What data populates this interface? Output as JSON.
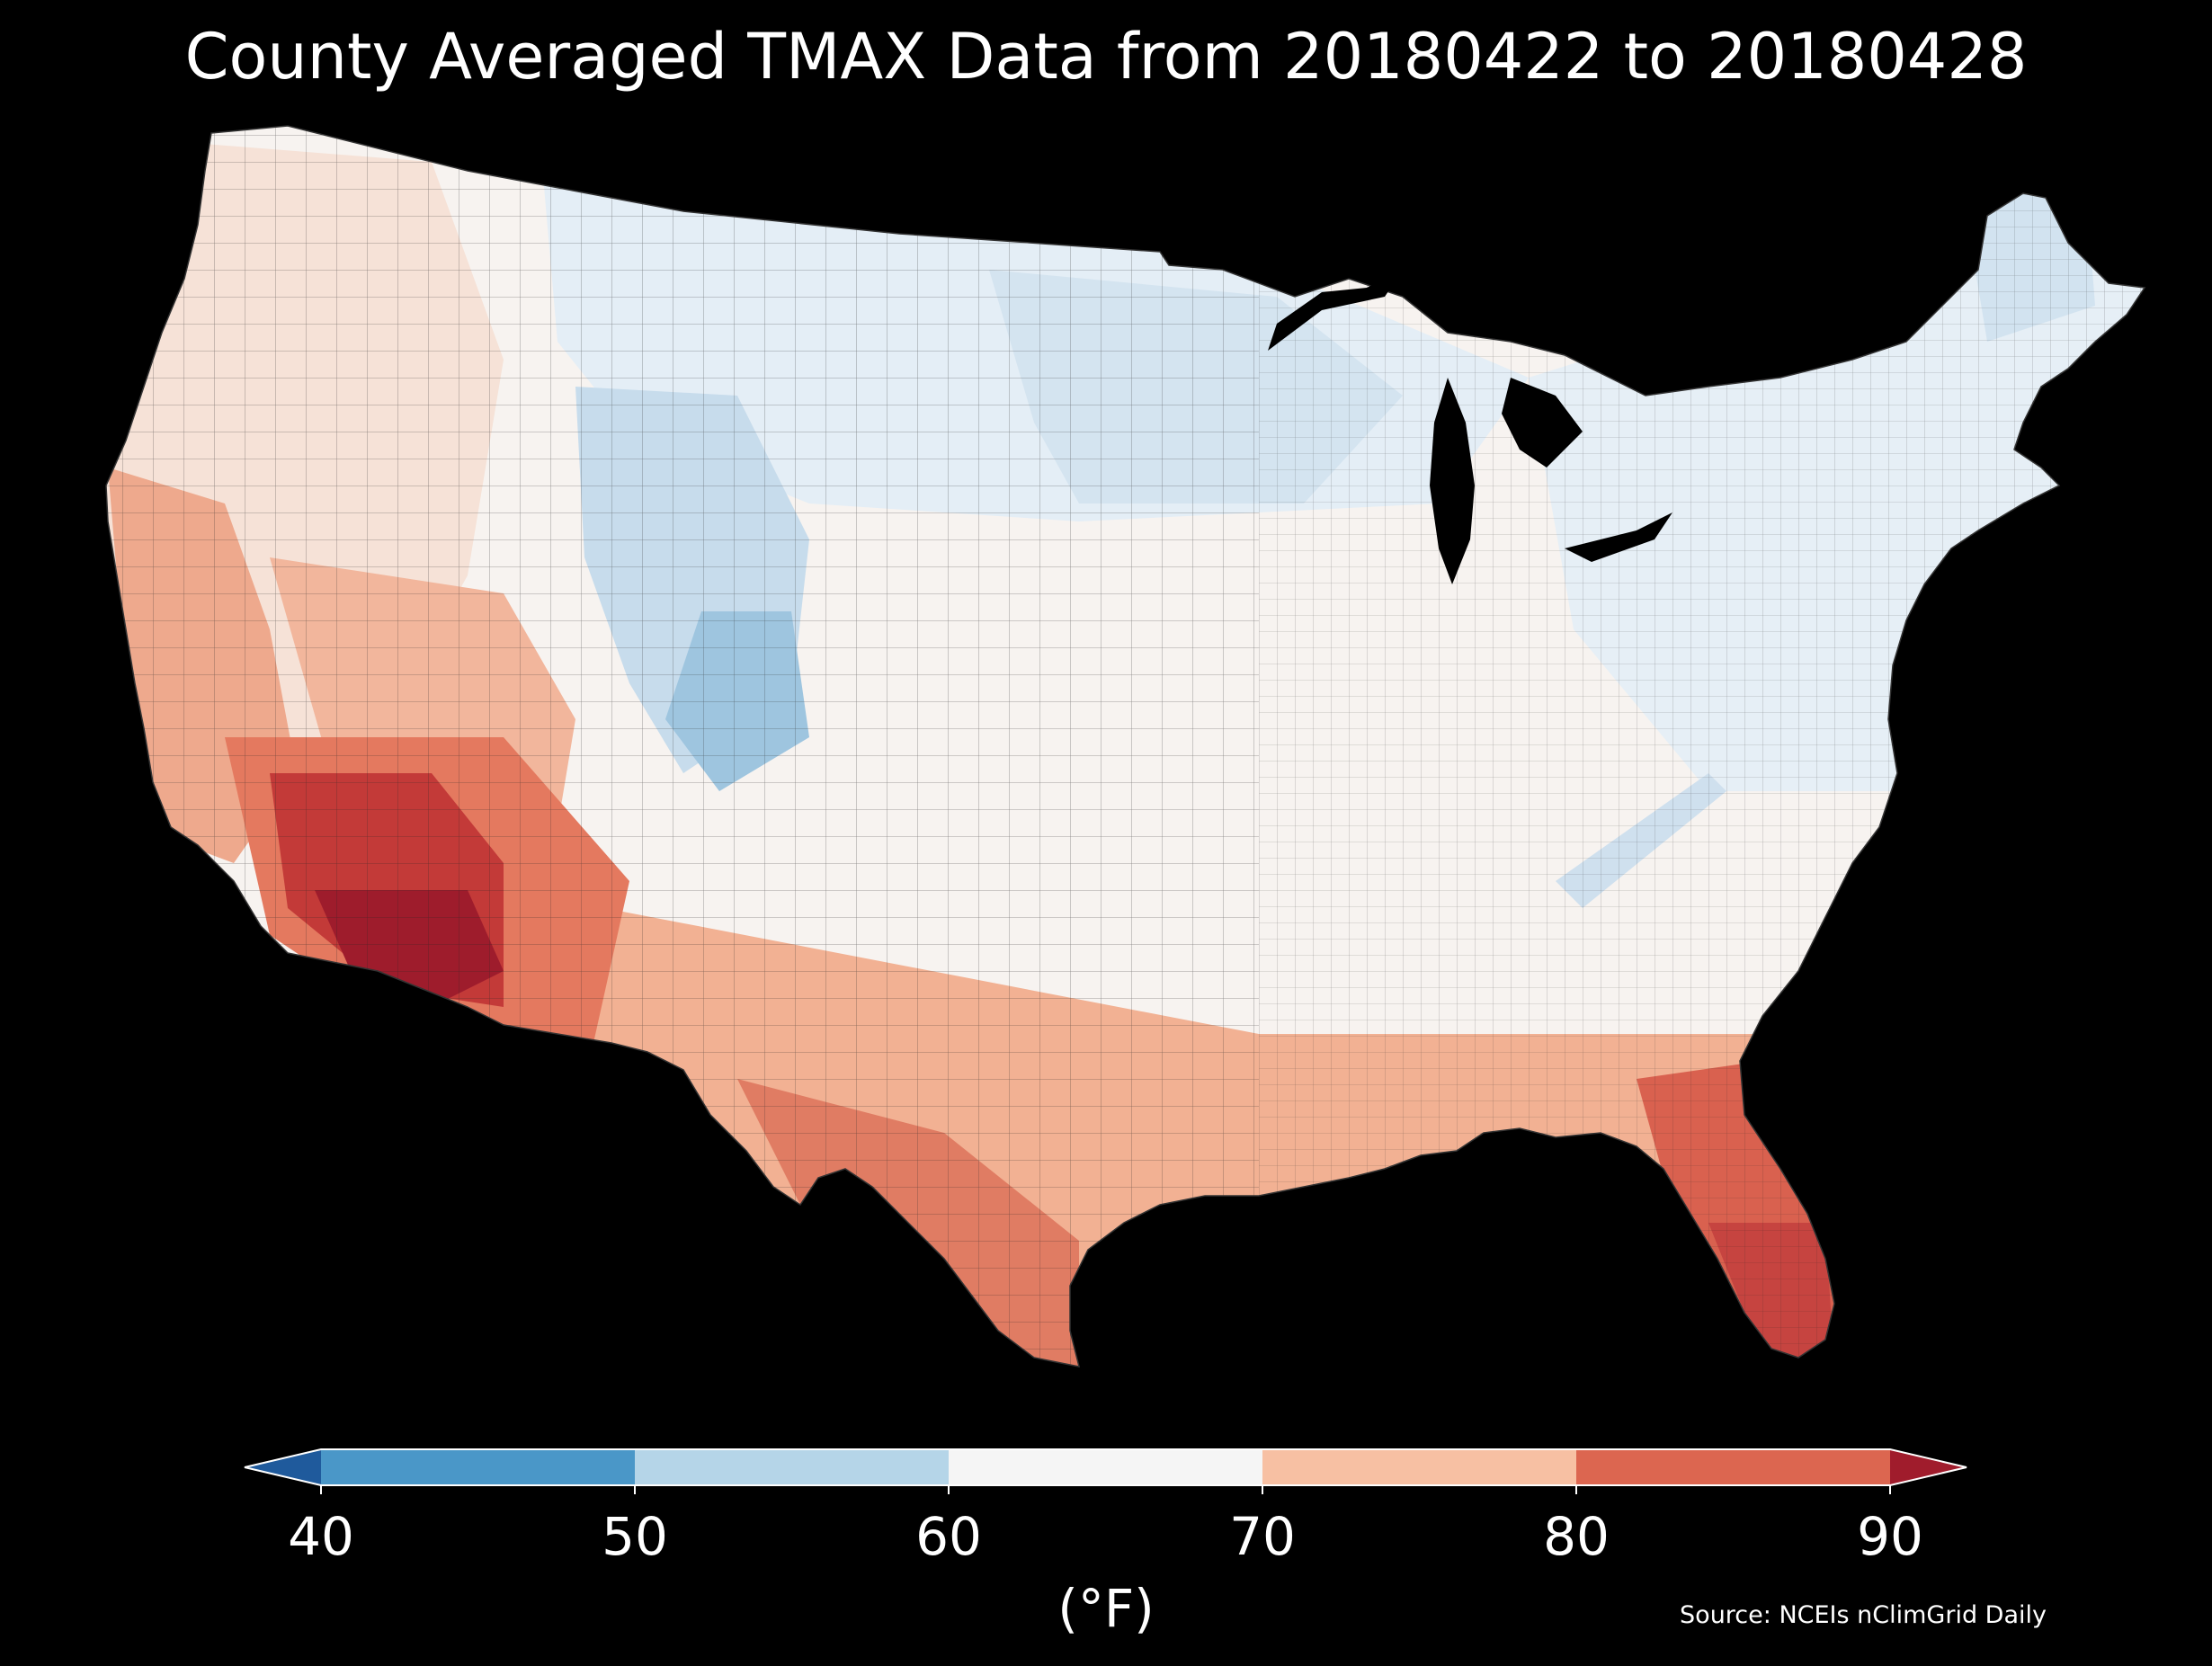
{
  "title": "County Averaged TMAX Data from 20180422 to 20180428",
  "source": "Source: NCEIs nClimGrid Daily",
  "colorbar": {
    "unit": "(°F)",
    "ticks": [
      "40",
      "50",
      "60",
      "70",
      "80",
      "90"
    ],
    "bins": [
      {
        "range": "<40",
        "color": "#1f5a9c"
      },
      {
        "range": "40-50",
        "color": "#4a97c8"
      },
      {
        "range": "50-60",
        "color": "#b5d5e8"
      },
      {
        "range": "60-70",
        "color": "#f5f5f5"
      },
      {
        "range": "70-80",
        "color": "#f7c0a3"
      },
      {
        "range": "80-90",
        "color": "#dc6650"
      },
      {
        "range": ">90",
        "color": "#a01c2c"
      }
    ]
  },
  "map": {
    "region": "Contiguous United States counties",
    "variable": "TMAX",
    "regional_colors": {
      "north": "#dde9f3",
      "rockies": "#b9d4e8",
      "central": "#f7f3f0",
      "west_coast": "#f4cdb9",
      "southwest": "#e8896e",
      "desert": "#b52a33",
      "gulf": "#eea183",
      "florida": "#d9614f",
      "northeast": "#e4eef6"
    }
  }
}
